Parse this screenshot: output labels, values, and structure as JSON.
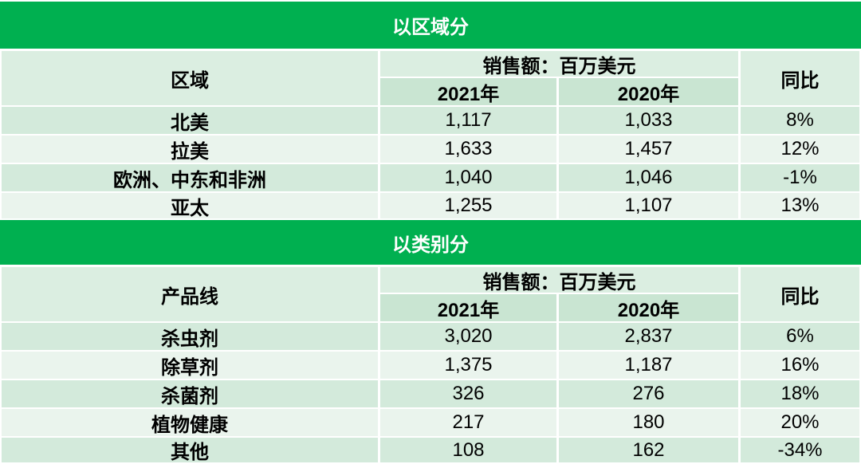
{
  "sections": [
    {
      "title": "以区域分",
      "header": {
        "row_label": "区域",
        "group_label": "销售额：百万美元",
        "col_2021": "2021年",
        "col_2020": "2020年",
        "yoy_label": "同比"
      },
      "rows": [
        {
          "name": "北美",
          "v2021": "1,117",
          "v2020": "1,033",
          "yoy": "8%"
        },
        {
          "name": "拉美",
          "v2021": "1,633",
          "v2020": "1,457",
          "yoy": "12%"
        },
        {
          "name": "欧洲、中东和非洲",
          "v2021": "1,040",
          "v2020": "1,046",
          "yoy": "-1%"
        },
        {
          "name": "亚太",
          "v2021": "1,255",
          "v2020": "1,107",
          "yoy": "13%"
        }
      ]
    },
    {
      "title": "以类别分",
      "header": {
        "row_label": "产品线",
        "group_label": "销售额：百万美元",
        "col_2021": "2021年",
        "col_2020": "2020年",
        "yoy_label": "同比"
      },
      "rows": [
        {
          "name": "杀虫剂",
          "v2021": "3,020",
          "v2020": "2,837",
          "yoy": "6%"
        },
        {
          "name": "除草剂",
          "v2021": "1,375",
          "v2020": "1,187",
          "yoy": "16%"
        },
        {
          "name": "杀菌剂",
          "v2021": "326",
          "v2020": "276",
          "yoy": "18%"
        },
        {
          "name": "植物健康",
          "v2021": "217",
          "v2020": "180",
          "yoy": "20%"
        },
        {
          "name": "其他",
          "v2021": "108",
          "v2020": "162",
          "yoy": "-34%"
        }
      ]
    }
  ],
  "colors": {
    "banner": "#00b050",
    "header": "#dbeee1",
    "row_dark": "#d3eadb",
    "row_light": "#eaf4ed"
  }
}
